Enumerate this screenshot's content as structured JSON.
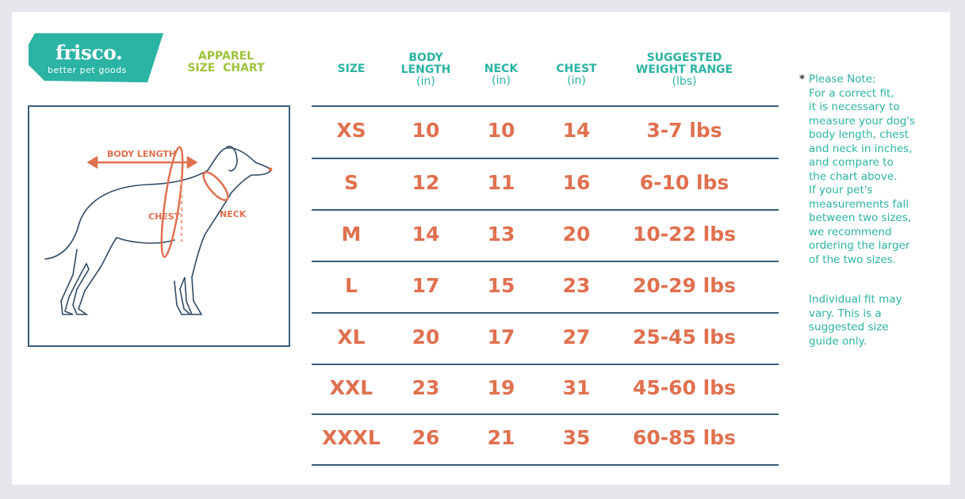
{
  "brand": {
    "name": "frisco.",
    "tagline": "better pet goods",
    "color": "#2bb3a3"
  },
  "title": {
    "line1": "APPAREL",
    "line2": "SIZE  CHART",
    "color": "#9cc33c"
  },
  "diagram": {
    "labels": {
      "body_length": "BODY LENGTH",
      "chest": "CHEST",
      "neck": "NECK"
    },
    "icon": "dog-outline-illustration"
  },
  "table": {
    "headers": [
      {
        "title": "SIZE",
        "unit": ""
      },
      {
        "title": "BODY\nLENGTH",
        "unit": "(in)"
      },
      {
        "title": "NECK",
        "unit": "(in)"
      },
      {
        "title": "CHEST",
        "unit": "(in)"
      },
      {
        "title": "SUGGESTED\nWEIGHT RANGE",
        "unit": "(lbs)"
      }
    ],
    "rows": [
      [
        "XS",
        "10",
        "10",
        "14",
        "3-7 lbs"
      ],
      [
        "S",
        "12",
        "11",
        "16",
        "6-10 lbs"
      ],
      [
        "M",
        "14",
        "13",
        "20",
        "10-22 lbs"
      ],
      [
        "L",
        "17",
        "15",
        "23",
        "20-29 lbs"
      ],
      [
        "XL",
        "20",
        "17",
        "27",
        "25-45 lbs"
      ],
      [
        "XXL",
        "23",
        "19",
        "31",
        "45-60 lbs"
      ],
      [
        "XXXL",
        "26",
        "21",
        "35",
        "60-85 lbs"
      ]
    ],
    "value_color": "#e0704f"
  },
  "note": {
    "asterisk": "*",
    "lines": [
      "Please Note:",
      "For a correct fit,",
      "it is necessary to",
      "measure your dog's",
      "body length, chest",
      "and neck in inches,",
      "and compare to",
      "the chart above.",
      "If your pet's",
      "measurements fall",
      "between two sizes,",
      "we recommend",
      "ordering the larger",
      "of the two sizes."
    ],
    "disclaimer": [
      "Individual fit may",
      "vary. This is a",
      "suggested size",
      "guide only."
    ]
  }
}
